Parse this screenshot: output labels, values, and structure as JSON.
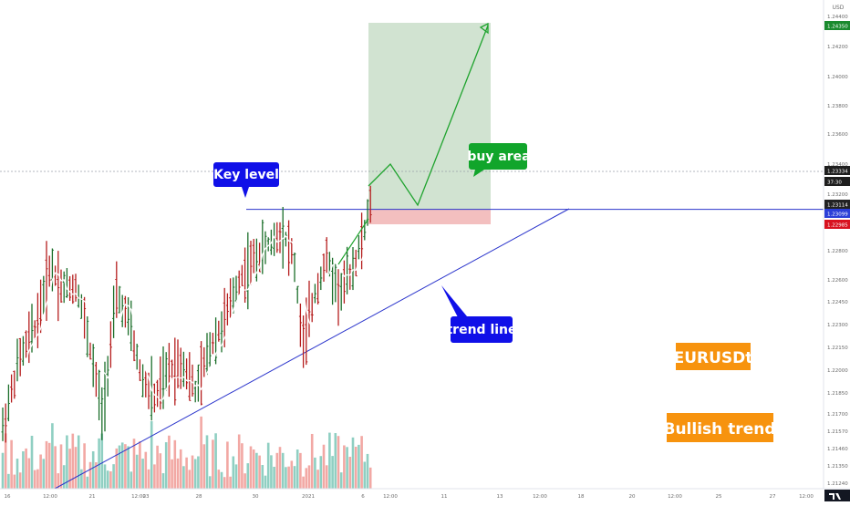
{
  "chart_data": {
    "type": "ohlc",
    "symbol_label": "EURUSDt",
    "currency": "USD",
    "y_ticks": [
      1.2124,
      1.2135,
      1.2146,
      1.2157,
      1.217,
      1.2185,
      1.22,
      1.2215,
      1.223,
      1.2245,
      1.226,
      1.228,
      1.23,
      1.232,
      1.234,
      1.236,
      1.238,
      1.24,
      1.242,
      1.244
    ],
    "y_tick_labels": [
      "1.21240",
      "1.21350",
      "1.21460",
      "1.21570",
      "1.21700",
      "1.21850",
      "1.22000",
      "1.22150",
      "1.22300",
      "1.22450",
      "1.22600",
      "1.22800",
      "1.23000",
      "1.23200",
      "1.23400",
      "1.23600",
      "1.23800",
      "1.24000",
      "1.24200",
      "1.24400"
    ],
    "x_tick_labels": [
      "16",
      "12:00",
      "21",
      "12:00",
      "23",
      "28",
      "30",
      "2021",
      "6",
      "12:00",
      "11",
      "13",
      "12:00",
      "18",
      "20",
      "12:00",
      "25",
      "27",
      "12:00"
    ],
    "price_badges": [
      {
        "label": "1.24350",
        "value": 1.2435,
        "color": "#1a8a2e"
      },
      {
        "label": "1.23334",
        "value": 1.23334,
        "color": "#1e1e1e"
      },
      {
        "label": "37:30",
        "value": 1.2328,
        "color": "#1e1e1e"
      },
      {
        "label": "1.23114",
        "value": 1.23114,
        "color": "#222222"
      },
      {
        "label": "1.23099",
        "value": 1.23099,
        "color": "#2b3ed8"
      },
      {
        "label": "1.22985",
        "value": 1.22985,
        "color": "#d8121f"
      }
    ],
    "key_level": 1.23099,
    "annotations": {
      "key_level": "Key level",
      "buy_area": "buy area",
      "trend_line": "trend line",
      "symbol": "EURUSDt",
      "bullish_trend": "Bullish trend"
    },
    "colors": {
      "up": "#1b6e2a",
      "down": "#b51d1d",
      "vol_up": "#8fcfc2",
      "vol_down": "#f2a8a4",
      "ma": "#ffffff",
      "trendline": "#2b35cc",
      "projection": "#1fa32e",
      "target_zone": "#c9dec9",
      "stop_zone": "#f2b8b8",
      "callout_blue": "#1010e8",
      "callout_green": "#11a52b",
      "callout_orange": "#f7930e"
    }
  }
}
